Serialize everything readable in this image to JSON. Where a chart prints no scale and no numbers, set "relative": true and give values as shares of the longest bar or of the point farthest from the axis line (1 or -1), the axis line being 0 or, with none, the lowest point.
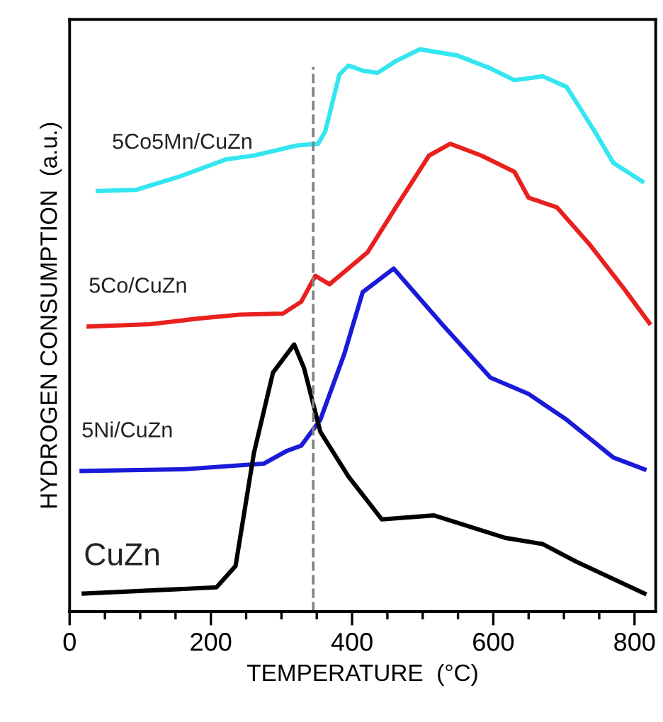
{
  "chart_data": {
    "type": "line",
    "relative": true,
    "xlabel": "TEMPERATURE  (°C)",
    "ylabel": "HYDROGEN CONSUMPTION  (a.u.)",
    "xlim": [
      0,
      830
    ],
    "xticks": [
      0,
      {
        "value": 50,
        "label": null
      },
      {
        "value": 100,
        "label": null
      },
      {
        "value": 150,
        "label": null
      },
      200,
      {
        "value": 250,
        "label": null
      },
      {
        "value": 300,
        "label": null
      },
      {
        "value": 350,
        "label": null
      },
      400,
      {
        "value": 450,
        "label": null
      },
      {
        "value": 500,
        "label": null
      },
      {
        "value": 550,
        "label": null
      },
      600,
      {
        "value": 650,
        "label": null
      },
      {
        "value": 700,
        "label": null
      },
      {
        "value": 750,
        "label": null
      },
      800
    ],
    "grid": false,
    "legend": false,
    "marker": "none",
    "line_style": "solid",
    "series": [
      {
        "name": "5Co5Mn/CuZn",
        "color": "#33e6f0",
        "x": [
          40,
          94,
          154,
          221,
          261,
          322,
          352,
          362,
          382,
          395,
          415,
          436,
          462,
          496,
          549,
          596,
          630,
          670,
          704,
          744,
          770,
          811
        ],
        "values": [
          0.748,
          0.75,
          0.773,
          0.804,
          0.811,
          0.829,
          0.832,
          0.854,
          0.955,
          0.971,
          0.962,
          0.958,
          0.979,
          1.0,
          0.989,
          0.966,
          0.945,
          0.952,
          0.933,
          0.853,
          0.798,
          0.765
        ]
      },
      {
        "name": "5Co/CuZn",
        "color": "#e8201e",
        "x": [
          27,
          114,
          181,
          241,
          302,
          328,
          348,
          368,
          422,
          462,
          509,
          539,
          583,
          630,
          650,
          690,
          737,
          784,
          821
        ],
        "values": [
          0.507,
          0.511,
          0.521,
          0.528,
          0.53,
          0.551,
          0.597,
          0.582,
          0.639,
          0.719,
          0.811,
          0.832,
          0.811,
          0.782,
          0.736,
          0.719,
          0.652,
          0.576,
          0.513
        ]
      },
      {
        "name": "5Ni/CuZn",
        "color": "#1a1ad8",
        "x": [
          17,
          161,
          275,
          308,
          328,
          355,
          389,
          415,
          459,
          529,
          596,
          650,
          704,
          770,
          814
        ],
        "values": [
          0.25,
          0.253,
          0.263,
          0.286,
          0.295,
          0.341,
          0.458,
          0.568,
          0.61,
          0.509,
          0.416,
          0.387,
          0.341,
          0.274,
          0.253
        ]
      },
      {
        "name": "CuZn",
        "color": "#000000",
        "x": [
          20,
          208,
          235,
          261,
          288,
          318,
          332,
          355,
          395,
          442,
          516,
          617,
          670,
          717,
          814
        ],
        "values": [
          0.032,
          0.043,
          0.081,
          0.282,
          0.425,
          0.475,
          0.433,
          0.32,
          0.24,
          0.164,
          0.171,
          0.131,
          0.12,
          0.089,
          0.032
        ]
      }
    ],
    "ref_lines": [
      {
        "axis": "x",
        "value": 345,
        "label": null,
        "color": "#808080",
        "line_style": "dashed"
      }
    ]
  }
}
